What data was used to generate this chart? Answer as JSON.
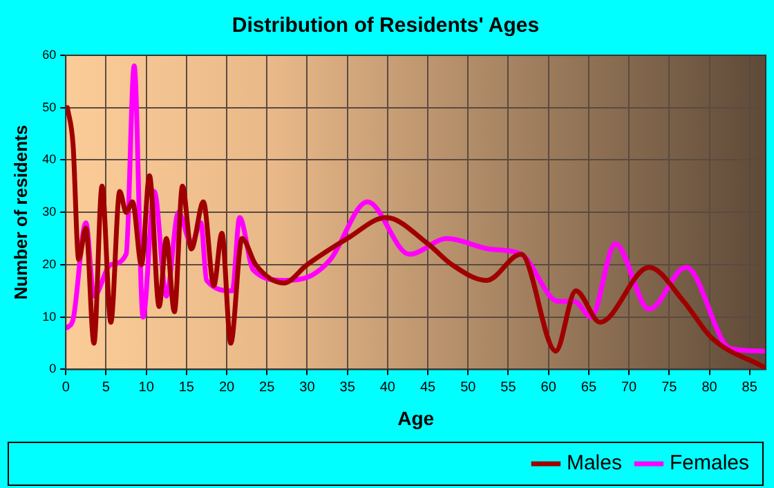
{
  "chart_data": {
    "type": "line",
    "title": "Distribution of Residents' Ages",
    "xlabel": "Age",
    "ylabel": "Number of residents",
    "xlim": [
      0,
      87
    ],
    "xticks": [
      0,
      5,
      10,
      15,
      20,
      25,
      30,
      35,
      40,
      45,
      50,
      55,
      60,
      65,
      70,
      75,
      80,
      85
    ],
    "ylim": [
      0,
      60
    ],
    "yticks": [
      0,
      10,
      20,
      30,
      40,
      50,
      60
    ],
    "grid": true,
    "legend": "bottom right",
    "marker": "none",
    "line_style": "solid",
    "series": [
      {
        "name": "Males",
        "color": "#a00000",
        "x": [
          0.2,
          0.9,
          1.6,
          2.5,
          3.5,
          4.5,
          5.6,
          6.7,
          7.5,
          8.3,
          9.4,
          10.4,
          11.6,
          12.5,
          13.5,
          14.5,
          15.6,
          17.1,
          18.4,
          19.4,
          20.5,
          21.9,
          23.6,
          27.1,
          30,
          35,
          39.8,
          45,
          48,
          52.3,
          56.6,
          60.9,
          63.4,
          66.4,
          72.5,
          76.8,
          80.3,
          86.7
        ],
        "values": [
          50,
          43,
          21,
          27,
          5,
          35,
          9,
          34,
          30,
          32,
          20,
          37,
          12,
          25,
          11,
          35,
          23,
          32,
          16,
          26,
          5,
          25,
          20,
          16.5,
          20,
          25,
          29,
          24,
          20,
          17,
          22,
          3.5,
          15,
          9,
          19.5,
          13,
          6,
          0.5
        ]
      },
      {
        "name": "Females",
        "color": "#ff00ff",
        "x": [
          0.2,
          0.9,
          2.5,
          3.5,
          5.6,
          7.5,
          8.5,
          9.6,
          11,
          12.5,
          14,
          15.6,
          16.8,
          17.5,
          20.7,
          21.6,
          23.3,
          27.1,
          30.6,
          32.9,
          37.5,
          42.7,
          47.4,
          52.6,
          56.6,
          61.2,
          63.2,
          65.3,
          68.3,
          72.5,
          77.1,
          82.6,
          86.7
        ],
        "values": [
          8,
          9.5,
          28,
          14,
          20,
          22,
          58,
          10,
          34,
          14,
          30,
          24,
          28,
          17,
          15,
          29,
          19,
          17,
          18,
          21,
          32,
          22,
          25,
          23,
          22,
          13,
          13,
          10,
          24,
          11.5,
          19.5,
          4,
          3.5
        ]
      }
    ]
  }
}
